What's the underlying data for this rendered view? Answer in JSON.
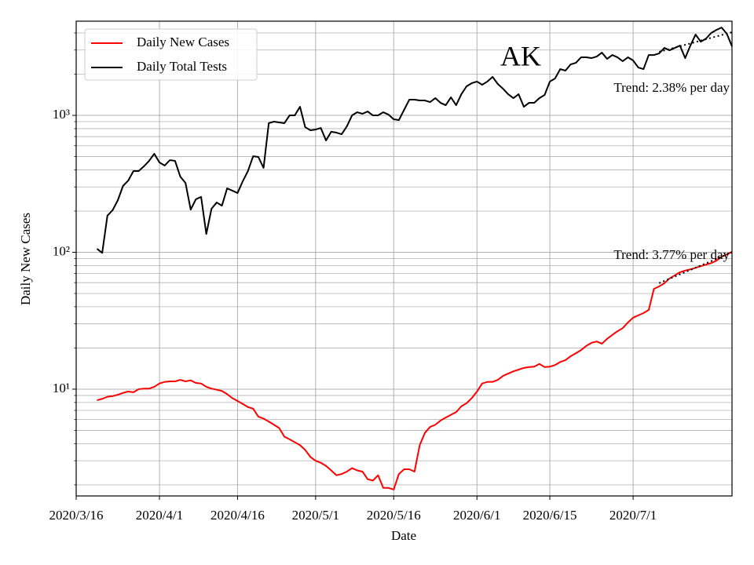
{
  "chart_data": {
    "type": "line",
    "xlabel": "Date",
    "ylabel": "Daily New Cases",
    "yscale": "log",
    "grid": true,
    "legend": "upper left",
    "annotations": [
      "AK",
      "Trend: 2.38% per day",
      "Trend: 3.77% per day"
    ],
    "xlim": [
      "2020/3/16",
      "2020/7/20"
    ],
    "xticks": [
      "2020/3/16",
      "2020/4/1",
      "2020/4/16",
      "2020/5/1",
      "2020/5/16",
      "2020/6/1",
      "2020/6/15",
      "2020/7/1"
    ],
    "ylim": [
      1.66,
      4875
    ],
    "yticks": [
      {
        "value": 10,
        "label": "10¹"
      },
      {
        "value": 100,
        "label": "10²"
      },
      {
        "value": 1000,
        "label": "10³"
      }
    ],
    "yminorticks": [
      2,
      3,
      4,
      5,
      6,
      7,
      8,
      9,
      20,
      30,
      40,
      50,
      60,
      70,
      80,
      90,
      200,
      300,
      400,
      500,
      600,
      700,
      800,
      900,
      2000,
      3000,
      4000
    ],
    "x": [
      "2020/3/20",
      "2020/3/21",
      "2020/3/22",
      "2020/3/23",
      "2020/3/24",
      "2020/3/25",
      "2020/3/26",
      "2020/3/27",
      "2020/3/28",
      "2020/3/29",
      "2020/3/30",
      "2020/3/31",
      "2020/4/1",
      "2020/4/2",
      "2020/4/3",
      "2020/4/4",
      "2020/4/5",
      "2020/4/6",
      "2020/4/7",
      "2020/4/8",
      "2020/4/9",
      "2020/4/10",
      "2020/4/11",
      "2020/4/12",
      "2020/4/13",
      "2020/4/14",
      "2020/4/15",
      "2020/4/16",
      "2020/4/17",
      "2020/4/18",
      "2020/4/19",
      "2020/4/20",
      "2020/4/21",
      "2020/4/22",
      "2020/4/23",
      "2020/4/24",
      "2020/4/25",
      "2020/4/26",
      "2020/4/27",
      "2020/4/28",
      "2020/4/29",
      "2020/4/30",
      "2020/5/1",
      "2020/5/2",
      "2020/5/3",
      "2020/5/4",
      "2020/5/5",
      "2020/5/6",
      "2020/5/7",
      "2020/5/8",
      "2020/5/9",
      "2020/5/10",
      "2020/5/11",
      "2020/5/12",
      "2020/5/13",
      "2020/5/14",
      "2020/5/15",
      "2020/5/16",
      "2020/5/17",
      "2020/5/18",
      "2020/5/19",
      "2020/5/20",
      "2020/5/21",
      "2020/5/22",
      "2020/5/23",
      "2020/5/24",
      "2020/5/25",
      "2020/5/26",
      "2020/5/27",
      "2020/5/28",
      "2020/5/29",
      "2020/5/30",
      "2020/5/31",
      "2020/6/1",
      "2020/6/2",
      "2020/6/3",
      "2020/6/4",
      "2020/6/5",
      "2020/6/6",
      "2020/6/7",
      "2020/6/8",
      "2020/6/9",
      "2020/6/10",
      "2020/6/11",
      "2020/6/12",
      "2020/6/13",
      "2020/6/14",
      "2020/6/15",
      "2020/6/16",
      "2020/6/17",
      "2020/6/18",
      "2020/6/19",
      "2020/6/20",
      "2020/6/21",
      "2020/6/22",
      "2020/6/23",
      "2020/6/24",
      "2020/6/25",
      "2020/6/26",
      "2020/6/27",
      "2020/6/28",
      "2020/6/29",
      "2020/6/30",
      "2020/7/1",
      "2020/7/2",
      "2020/7/3",
      "2020/7/4",
      "2020/7/5",
      "2020/7/6",
      "2020/7/7",
      "2020/7/8",
      "2020/7/9",
      "2020/7/10",
      "2020/7/11",
      "2020/7/12",
      "2020/7/13",
      "2020/7/14",
      "2020/7/15",
      "2020/7/16",
      "2020/7/17",
      "2020/7/18",
      "2020/7/19",
      "2020/7/20"
    ],
    "series": [
      {
        "name": "Daily New Cases",
        "color": "#ff0000",
        "values": [
          8.3,
          8.5,
          8.8,
          8.9,
          9.1,
          9.4,
          9.6,
          9.5,
          10.0,
          10.1,
          10.1,
          10.4,
          11.0,
          11.3,
          11.4,
          11.4,
          11.7,
          11.4,
          11.6,
          11.1,
          11.0,
          10.4,
          10.1,
          9.9,
          9.7,
          9.2,
          8.6,
          8.2,
          7.8,
          7.4,
          7.2,
          6.3,
          6.1,
          5.8,
          5.5,
          5.2,
          4.5,
          4.3,
          4.1,
          3.9,
          3.6,
          3.2,
          3.0,
          2.9,
          2.75,
          2.55,
          2.35,
          2.4,
          2.5,
          2.65,
          2.55,
          2.5,
          2.2,
          2.15,
          2.35,
          1.9,
          1.9,
          1.85,
          2.4,
          2.6,
          2.6,
          2.5,
          3.9,
          4.8,
          5.3,
          5.5,
          5.9,
          6.2,
          6.5,
          6.8,
          7.5,
          7.9,
          8.6,
          9.6,
          11.0,
          11.3,
          11.3,
          11.7,
          12.5,
          13.0,
          13.5,
          13.9,
          14.3,
          14.5,
          14.6,
          15.3,
          14.5,
          14.6,
          15.0,
          15.8,
          16.3,
          17.4,
          18.3,
          19.3,
          20.7,
          21.8,
          22.3,
          21.5,
          23.3,
          24.9,
          26.5,
          27.9,
          30.7,
          33.3,
          34.6,
          36.0,
          37.9,
          54.1,
          56.3,
          59.4,
          64.4,
          67.8,
          71.5,
          73.5,
          75.0,
          77.0,
          79.2,
          81.3,
          83.4,
          86.8,
          92.7,
          96.3,
          100.8
        ]
      },
      {
        "name": "Daily Total Tests",
        "color": "#000000",
        "values": [
          106,
          99,
          185,
          203,
          240,
          305,
          334,
          392,
          392,
          424,
          465,
          524,
          453,
          430,
          471,
          465,
          357,
          321,
          205,
          244,
          254,
          136,
          208,
          231,
          219,
          293,
          282,
          271,
          330,
          392,
          503,
          497,
          413,
          877,
          900,
          888,
          877,
          1000,
          1000,
          1156,
          820,
          778,
          788,
          809,
          656,
          759,
          748,
          728,
          831,
          1000,
          1054,
          1027,
          1068,
          1000,
          1000,
          1054,
          1013,
          936,
          924,
          1097,
          1302,
          1302,
          1285,
          1285,
          1251,
          1337,
          1235,
          1187,
          1355,
          1187,
          1428,
          1630,
          1719,
          1766,
          1673,
          1766,
          1910,
          1696,
          1566,
          1428,
          1337,
          1428,
          1156,
          1235,
          1235,
          1337,
          1409,
          1766,
          1860,
          2178,
          2122,
          2358,
          2420,
          2655,
          2655,
          2620,
          2690,
          2873,
          2586,
          2761,
          2655,
          2487,
          2655,
          2519,
          2236,
          2178,
          2761,
          2761,
          2835,
          3111,
          2990,
          3111,
          3233,
          2620,
          3233,
          3894,
          3450,
          3634,
          3999,
          4210,
          4380,
          3946,
          3190
        ]
      }
    ],
    "trends": [
      {
        "color": "#000000",
        "x": [
          "2020/7/6",
          "2020/7/20"
        ],
        "values": [
          2910,
          4050
        ]
      },
      {
        "color": "#000000",
        "x": [
          "2020/7/6",
          "2020/7/20"
        ],
        "values": [
          59.5,
          100
        ]
      }
    ]
  }
}
